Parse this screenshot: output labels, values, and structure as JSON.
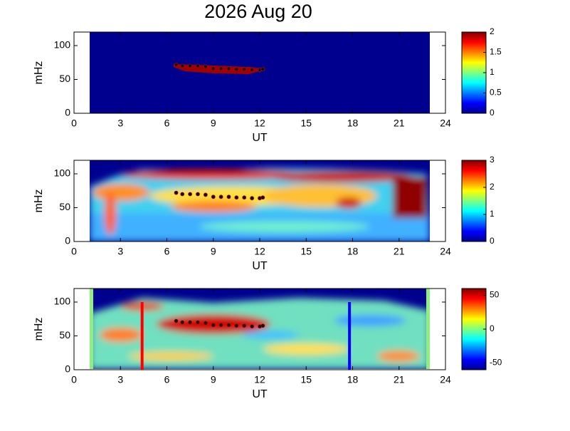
{
  "chart_data": [
    {
      "type": "heatmap",
      "title": "2026 Aug 20",
      "xlabel": "UT",
      "ylabel": "mHz",
      "xlim": [
        0,
        24
      ],
      "xticks": [
        0,
        3,
        6,
        9,
        12,
        15,
        18,
        21,
        24
      ],
      "ylim": [
        0,
        120
      ],
      "yticks": [
        0,
        50,
        100
      ],
      "clim": [
        0,
        2
      ],
      "cticks": [
        0,
        0.5,
        1,
        1.5,
        2
      ],
      "series": [
        {
          "color": "#000000",
          "x": [
            6.6,
            7,
            7.5,
            8,
            8.5,
            9,
            9.5,
            10,
            10.5,
            11,
            11.5,
            12,
            12.2
          ],
          "values": [
            72,
            70,
            70,
            70,
            69,
            66,
            66,
            66,
            65,
            65,
            64,
            64,
            65
          ]
        }
      ]
    },
    {
      "type": "heatmap",
      "xlabel": "UT",
      "ylabel": "mHz",
      "xlim": [
        0,
        24
      ],
      "xticks": [
        0,
        3,
        6,
        9,
        12,
        15,
        18,
        21,
        24
      ],
      "ylim": [
        0,
        120
      ],
      "yticks": [
        0,
        50,
        100
      ],
      "clim": [
        0,
        3
      ],
      "cticks": [
        0,
        1,
        2,
        3
      ],
      "series": [
        {
          "color": "#000000",
          "x": [
            6.6,
            7,
            7.5,
            8,
            8.5,
            9,
            9.5,
            10,
            10.5,
            11,
            11.5,
            12,
            12.2
          ],
          "values": [
            72,
            70,
            70,
            70,
            69,
            66,
            66,
            66,
            65,
            65,
            64,
            64,
            65
          ]
        }
      ]
    },
    {
      "type": "heatmap",
      "xlabel": "UT",
      "ylabel": "mHz",
      "xlim": [
        0,
        24
      ],
      "xticks": [
        0,
        3,
        6,
        9,
        12,
        15,
        18,
        21,
        24
      ],
      "ylim": [
        0,
        120
      ],
      "yticks": [
        0,
        50,
        100
      ],
      "clim": [
        -60,
        60
      ],
      "cticks": [
        -50,
        0,
        50
      ],
      "series": [
        {
          "color": "#000000",
          "x": [
            6.6,
            7,
            7.5,
            8,
            8.5,
            9,
            9.5,
            10,
            10.5,
            11,
            11.5,
            12,
            12.2
          ],
          "values": [
            72,
            70,
            70,
            70,
            69,
            66,
            66,
            66,
            65,
            65,
            64,
            64,
            65
          ]
        }
      ],
      "vlines": [
        {
          "x": 4.4,
          "top": 100,
          "color": "#ff0000"
        },
        {
          "x": 17.8,
          "top": 100,
          "color": "#0000ff"
        }
      ]
    }
  ]
}
